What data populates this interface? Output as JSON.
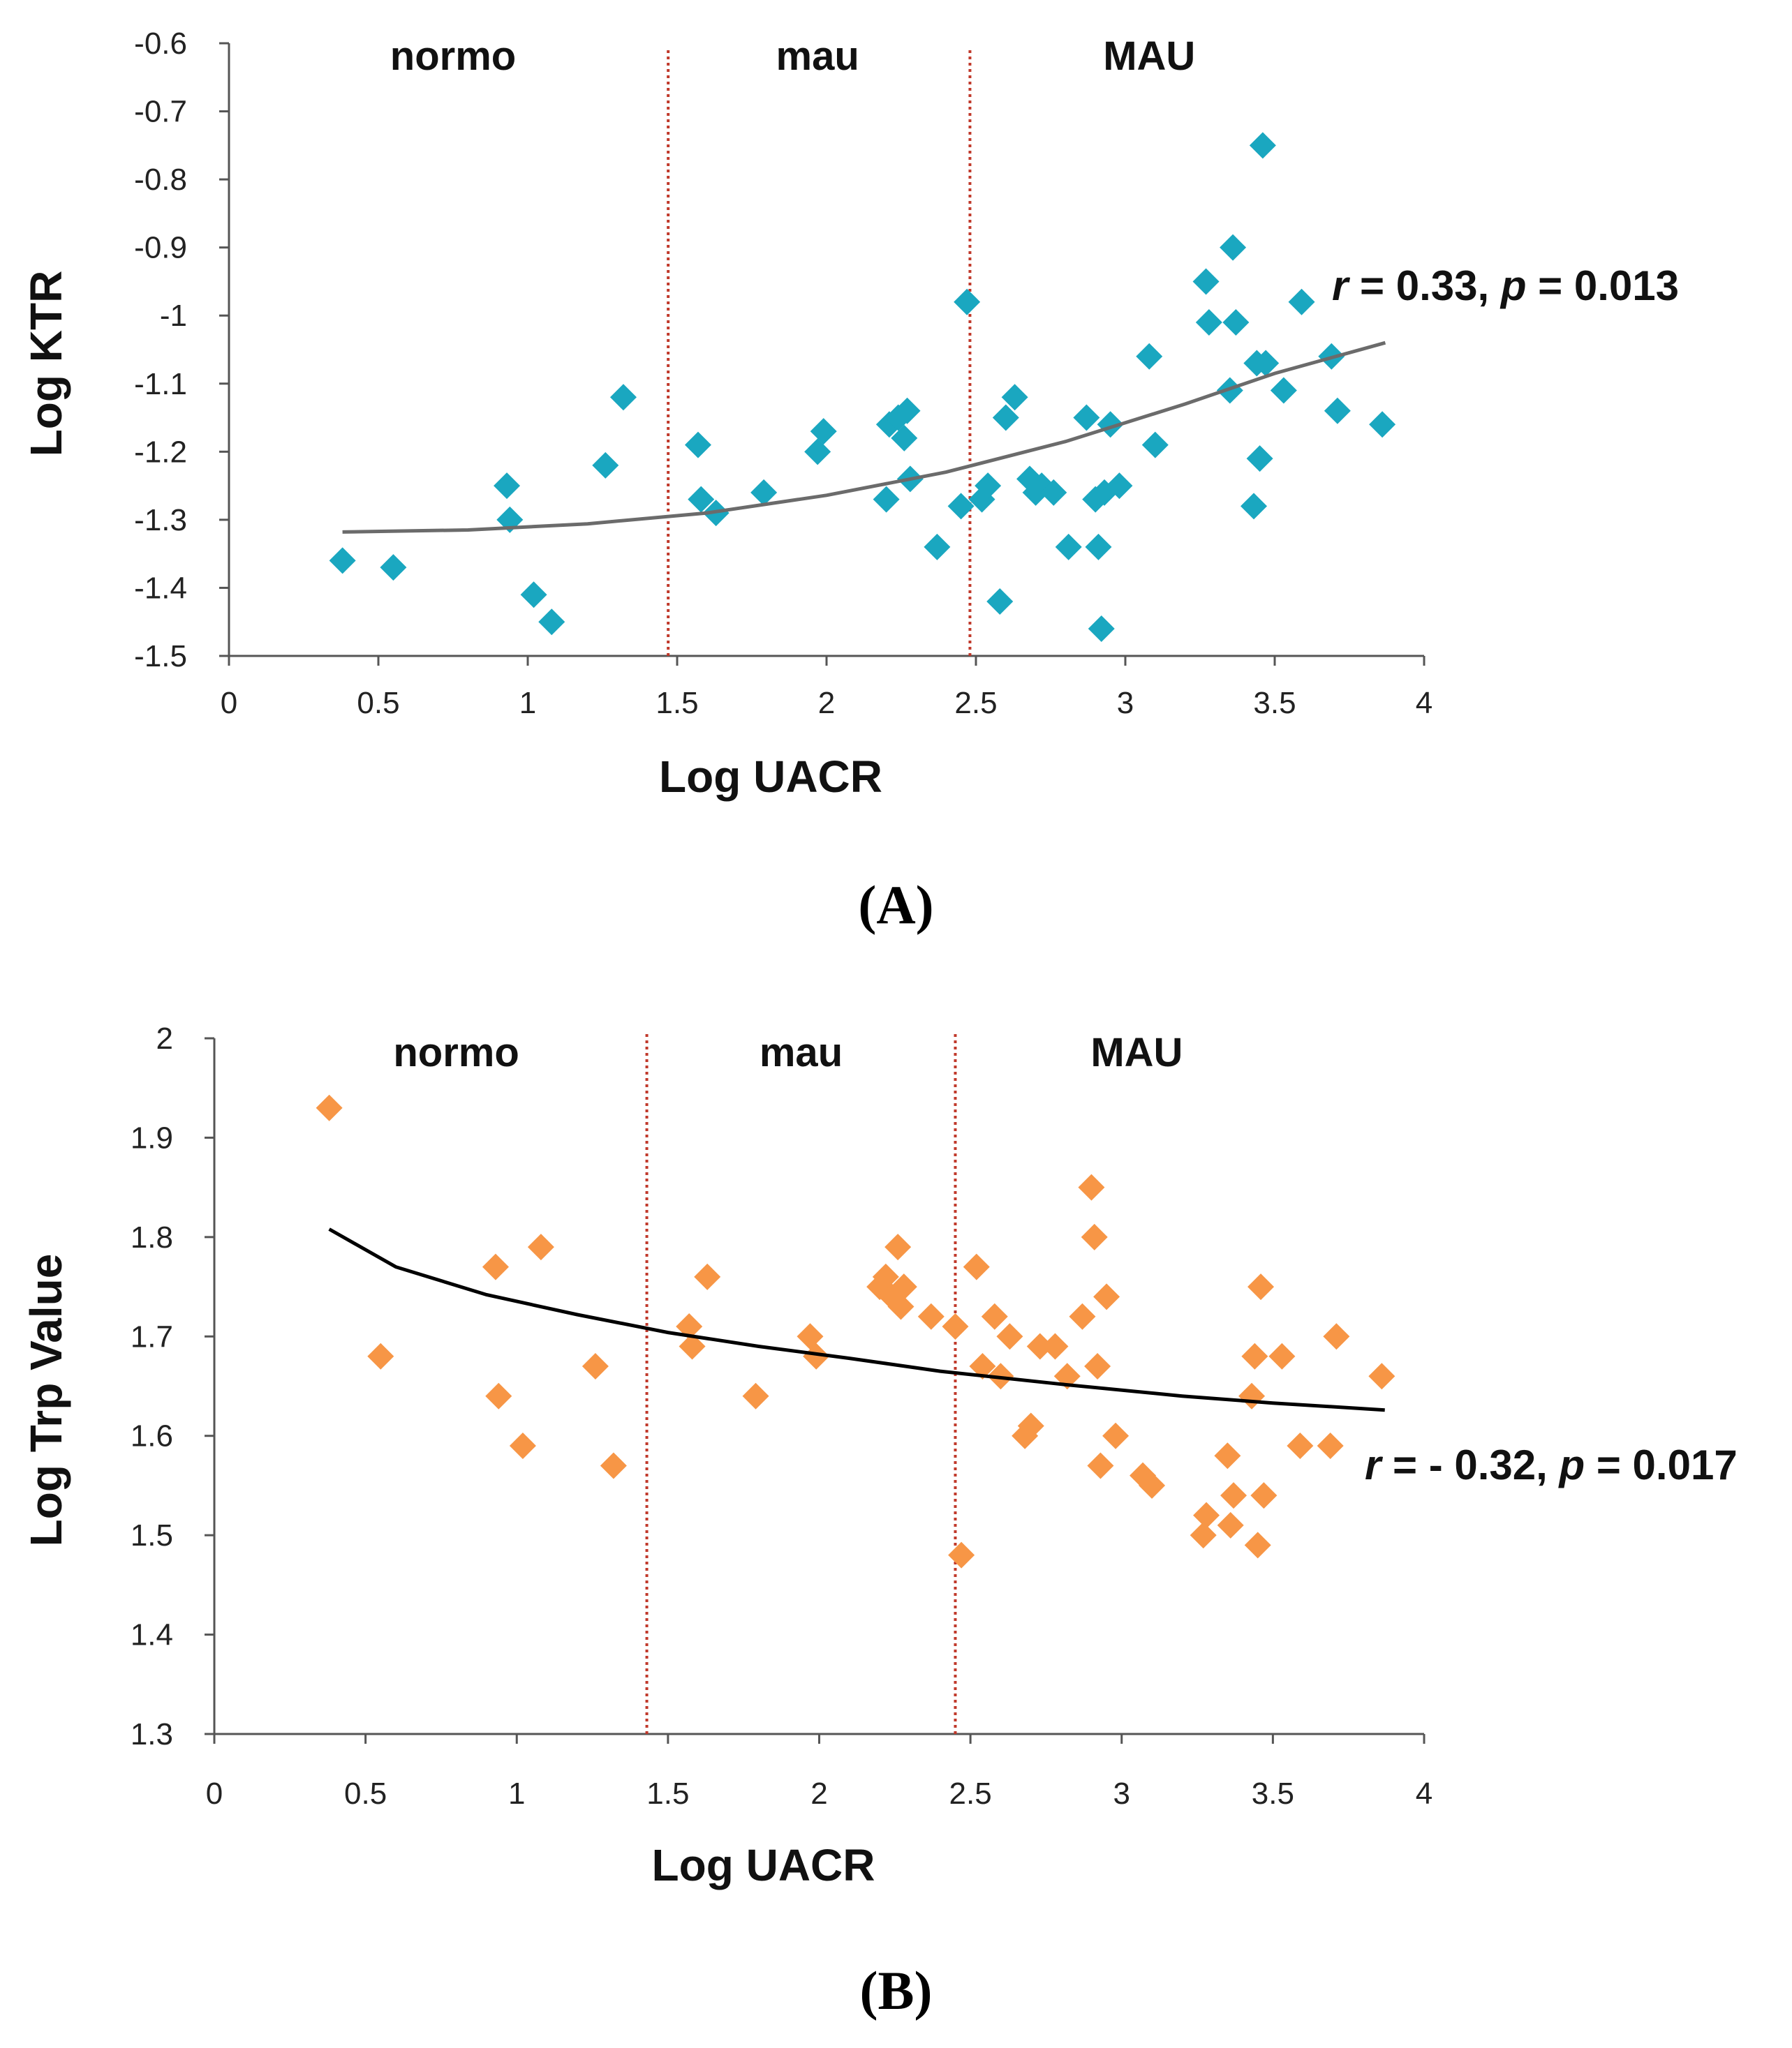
{
  "figure": {
    "panel_a_caption": "(A)",
    "panel_b_caption": "(B)"
  },
  "chart_data": [
    {
      "type": "scatter",
      "panel": "A",
      "xlabel": "Log UACR",
      "ylabel": "Log KTR",
      "xlim": [
        0,
        4
      ],
      "ylim": [
        -1.5,
        -0.6
      ],
      "xticks": [
        0,
        0.5,
        1,
        1.5,
        2,
        2.5,
        3,
        3.5,
        4
      ],
      "xtick_labels": [
        "0",
        "0.5",
        "1",
        "1.5",
        "2",
        "2.5",
        "3",
        "3.5",
        "4"
      ],
      "yticks": [
        -1.5,
        -1.4,
        -1.3,
        -1.2,
        -1.1,
        -1.0,
        -0.9,
        -0.8,
        -0.7,
        -0.6
      ],
      "ytick_labels": [
        "-1.5",
        "-1.4",
        "-1.3",
        "-1.2",
        "-1.1",
        "-1",
        "-0.9",
        "-0.8",
        "-0.7",
        "-0.6"
      ],
      "marker": "diamond",
      "color": "#1aa7c0",
      "trend_color": "#6b6b6b",
      "divider_color": "#c0392b",
      "dividers": [
        1.47,
        2.48
      ],
      "regions": [
        {
          "label": "normo",
          "x": 0.75
        },
        {
          "label": "mau",
          "x": 1.97
        },
        {
          "label": "MAU",
          "x": 3.08
        }
      ],
      "annotation": {
        "r_symbol": "r",
        "r_text": " = 0.33, ",
        "p_symbol": "p",
        "p_text": " = 0.013"
      },
      "trend": [
        [
          0.38,
          -1.318
        ],
        [
          0.8,
          -1.315
        ],
        [
          1.2,
          -1.306
        ],
        [
          1.6,
          -1.29
        ],
        [
          2.0,
          -1.264
        ],
        [
          2.4,
          -1.23
        ],
        [
          2.8,
          -1.185
        ],
        [
          3.2,
          -1.13
        ],
        [
          3.5,
          -1.085
        ],
        [
          3.87,
          -1.04
        ]
      ],
      "points": [
        [
          0.38,
          -1.36
        ],
        [
          0.55,
          -1.37
        ],
        [
          0.93,
          -1.25
        ],
        [
          0.94,
          -1.3
        ],
        [
          1.02,
          -1.41
        ],
        [
          1.08,
          -1.45
        ],
        [
          1.26,
          -1.22
        ],
        [
          1.32,
          -1.12
        ],
        [
          1.57,
          -1.19
        ],
        [
          1.58,
          -1.27
        ],
        [
          1.63,
          -1.29
        ],
        [
          1.79,
          -1.26
        ],
        [
          1.97,
          -1.2
        ],
        [
          1.99,
          -1.17
        ],
        [
          2.2,
          -1.27
        ],
        [
          2.21,
          -1.16
        ],
        [
          2.24,
          -1.15
        ],
        [
          2.26,
          -1.18
        ],
        [
          2.27,
          -1.14
        ],
        [
          2.28,
          -1.24
        ],
        [
          2.37,
          -1.34
        ],
        [
          2.45,
          -1.28
        ],
        [
          2.47,
          -0.98
        ],
        [
          2.52,
          -1.27
        ],
        [
          2.54,
          -1.25
        ],
        [
          2.58,
          -1.42
        ],
        [
          2.6,
          -1.15
        ],
        [
          2.63,
          -1.12
        ],
        [
          2.68,
          -1.24
        ],
        [
          2.7,
          -1.26
        ],
        [
          2.72,
          -1.25
        ],
        [
          2.76,
          -1.26
        ],
        [
          2.81,
          -1.34
        ],
        [
          2.87,
          -1.15
        ],
        [
          2.9,
          -1.27
        ],
        [
          2.91,
          -1.34
        ],
        [
          2.92,
          -1.46
        ],
        [
          2.93,
          -1.26
        ],
        [
          2.95,
          -1.16
        ],
        [
          2.98,
          -1.25
        ],
        [
          3.08,
          -1.06
        ],
        [
          3.1,
          -1.19
        ],
        [
          3.27,
          -0.95
        ],
        [
          3.28,
          -1.01
        ],
        [
          3.35,
          -1.11
        ],
        [
          3.36,
          -0.9
        ],
        [
          3.37,
          -1.01
        ],
        [
          3.43,
          -1.28
        ],
        [
          3.44,
          -1.07
        ],
        [
          3.45,
          -1.21
        ],
        [
          3.46,
          -0.75
        ],
        [
          3.47,
          -1.07
        ],
        [
          3.53,
          -1.11
        ],
        [
          3.59,
          -0.98
        ],
        [
          3.69,
          -1.06
        ],
        [
          3.71,
          -1.14
        ],
        [
          3.86,
          -1.16
        ]
      ]
    },
    {
      "type": "scatter",
      "panel": "B",
      "xlabel": "Log UACR",
      "ylabel": "Log Trp Value",
      "xlim": [
        0,
        4
      ],
      "ylim": [
        1.3,
        2.0
      ],
      "xticks": [
        0,
        0.5,
        1,
        1.5,
        2,
        2.5,
        3,
        3.5,
        4
      ],
      "xtick_labels": [
        "0",
        "0.5",
        "1",
        "1.5",
        "2",
        "2.5",
        "3",
        "3.5",
        "4"
      ],
      "yticks": [
        1.3,
        1.4,
        1.5,
        1.6,
        1.7,
        1.8,
        1.9,
        2.0
      ],
      "ytick_labels": [
        "1.3",
        "1.4",
        "1.5",
        "1.6",
        "1.7",
        "1.8",
        "1.9",
        "2"
      ],
      "marker": "diamond",
      "color": "#f79646",
      "trend_color": "#000000",
      "divider_color": "#c0392b",
      "dividers": [
        1.43,
        2.45
      ],
      "regions": [
        {
          "label": "normo",
          "x": 0.8
        },
        {
          "label": "mau",
          "x": 1.94
        },
        {
          "label": "MAU",
          "x": 3.05
        }
      ],
      "annotation": {
        "r_symbol": "r",
        "r_text": " = - 0.32, ",
        "p_symbol": "p",
        "p_text": " = 0.017"
      },
      "trend": [
        [
          0.38,
          1.808
        ],
        [
          0.6,
          1.77
        ],
        [
          0.9,
          1.742
        ],
        [
          1.2,
          1.722
        ],
        [
          1.5,
          1.704
        ],
        [
          1.8,
          1.69
        ],
        [
          2.1,
          1.678
        ],
        [
          2.4,
          1.665
        ],
        [
          2.8,
          1.652
        ],
        [
          3.2,
          1.64
        ],
        [
          3.5,
          1.633
        ],
        [
          3.87,
          1.626
        ]
      ],
      "points": [
        [
          0.38,
          1.93
        ],
        [
          0.55,
          1.68
        ],
        [
          0.93,
          1.77
        ],
        [
          0.94,
          1.64
        ],
        [
          1.02,
          1.59
        ],
        [
          1.08,
          1.79
        ],
        [
          1.26,
          1.67
        ],
        [
          1.32,
          1.57
        ],
        [
          1.57,
          1.71
        ],
        [
          1.58,
          1.69
        ],
        [
          1.63,
          1.76
        ],
        [
          1.79,
          1.64
        ],
        [
          1.97,
          1.7
        ],
        [
          1.99,
          1.68
        ],
        [
          2.2,
          1.75
        ],
        [
          2.22,
          1.76
        ],
        [
          2.24,
          1.74
        ],
        [
          2.26,
          1.79
        ],
        [
          2.27,
          1.73
        ],
        [
          2.28,
          1.75
        ],
        [
          2.37,
          1.72
        ],
        [
          2.45,
          1.71
        ],
        [
          2.47,
          1.48
        ],
        [
          2.52,
          1.77
        ],
        [
          2.54,
          1.67
        ],
        [
          2.58,
          1.72
        ],
        [
          2.6,
          1.66
        ],
        [
          2.63,
          1.7
        ],
        [
          2.68,
          1.6
        ],
        [
          2.7,
          1.61
        ],
        [
          2.73,
          1.69
        ],
        [
          2.78,
          1.69
        ],
        [
          2.82,
          1.66
        ],
        [
          2.87,
          1.72
        ],
        [
          2.9,
          1.85
        ],
        [
          2.91,
          1.8
        ],
        [
          2.92,
          1.67
        ],
        [
          2.93,
          1.57
        ],
        [
          2.95,
          1.74
        ],
        [
          2.98,
          1.6
        ],
        [
          3.07,
          1.56
        ],
        [
          3.1,
          1.55
        ],
        [
          3.27,
          1.5
        ],
        [
          3.28,
          1.52
        ],
        [
          3.35,
          1.58
        ],
        [
          3.36,
          1.51
        ],
        [
          3.37,
          1.54
        ],
        [
          3.43,
          1.64
        ],
        [
          3.44,
          1.68
        ],
        [
          3.45,
          1.49
        ],
        [
          3.46,
          1.75
        ],
        [
          3.47,
          1.54
        ],
        [
          3.53,
          1.68
        ],
        [
          3.59,
          1.59
        ],
        [
          3.69,
          1.59
        ],
        [
          3.71,
          1.7
        ],
        [
          3.86,
          1.66
        ]
      ]
    }
  ]
}
